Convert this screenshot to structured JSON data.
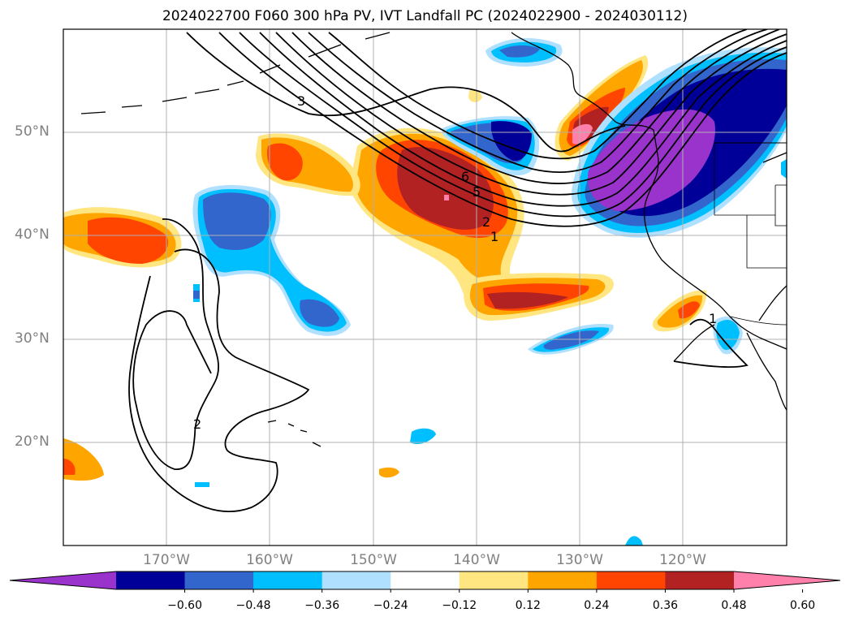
{
  "title": "2024022700 F060 300 hPa PV, IVT Landfall PC (2024022900 - 2024030112)",
  "map": {
    "projection": "PlateCarree",
    "lon_range": [
      -180,
      -110
    ],
    "lat_range": [
      10,
      60
    ],
    "lat_labels": [
      "50°N",
      "40°N",
      "30°N",
      "20°N"
    ],
    "lon_labels": [
      "170°W",
      "160°W",
      "150°W",
      "140°W",
      "130°W",
      "120°W"
    ],
    "grid": true,
    "pv_contour_labels": [
      "6",
      "5",
      "2",
      "1",
      "3",
      "2",
      "1"
    ]
  },
  "colorbar": {
    "ticks": [
      "−0.60",
      "−0.48",
      "−0.36",
      "−0.24",
      "−0.12",
      "0.12",
      "0.24",
      "0.36",
      "0.48",
      "0.60"
    ],
    "colors": [
      "#9933cc",
      "#000099",
      "#3366cc",
      "#00bfff",
      "#b0e0ff",
      "#ffffff",
      "#ffe680",
      "#ffa500",
      "#ff4500",
      "#b22222",
      "#ff80aa"
    ],
    "extend": "both"
  }
}
